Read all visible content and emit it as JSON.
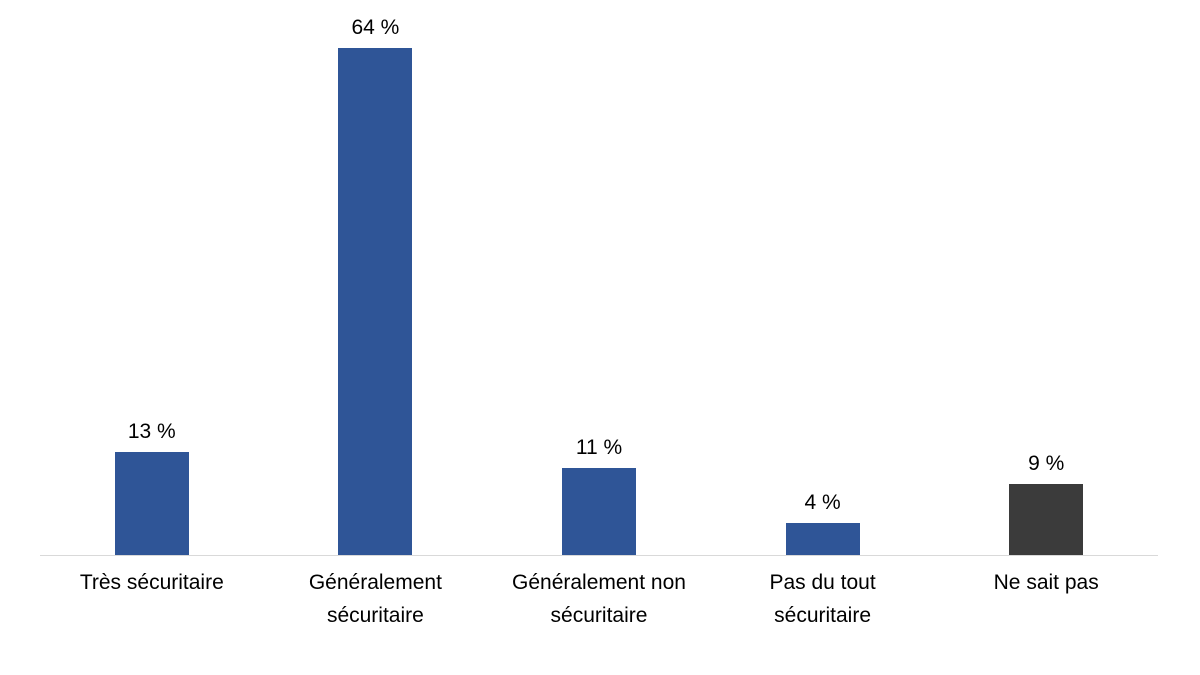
{
  "chart_data": {
    "type": "bar",
    "title": "",
    "xlabel": "",
    "ylabel": "",
    "categories": [
      "Très sécuritaire",
      "Généralement sécuritaire",
      "Généralement non sécuritaire",
      "Pas du tout sécuritaire",
      "Ne sait pas"
    ],
    "values": [
      13,
      64,
      11,
      4,
      9
    ],
    "value_labels": [
      "13 %",
      "64 %",
      "11 %",
      "4 %",
      "9 %"
    ],
    "bar_colors": [
      "#2F5597",
      "#2F5597",
      "#2F5597",
      "#2F5597",
      "#3B3B3B"
    ],
    "ylim": [
      0,
      70
    ],
    "grid": false,
    "legend": "none",
    "y_axis_visible": false,
    "x_axis_line_color": "#D9D9D9",
    "label_color": "#000000",
    "background_color": "#FFFFFF"
  }
}
